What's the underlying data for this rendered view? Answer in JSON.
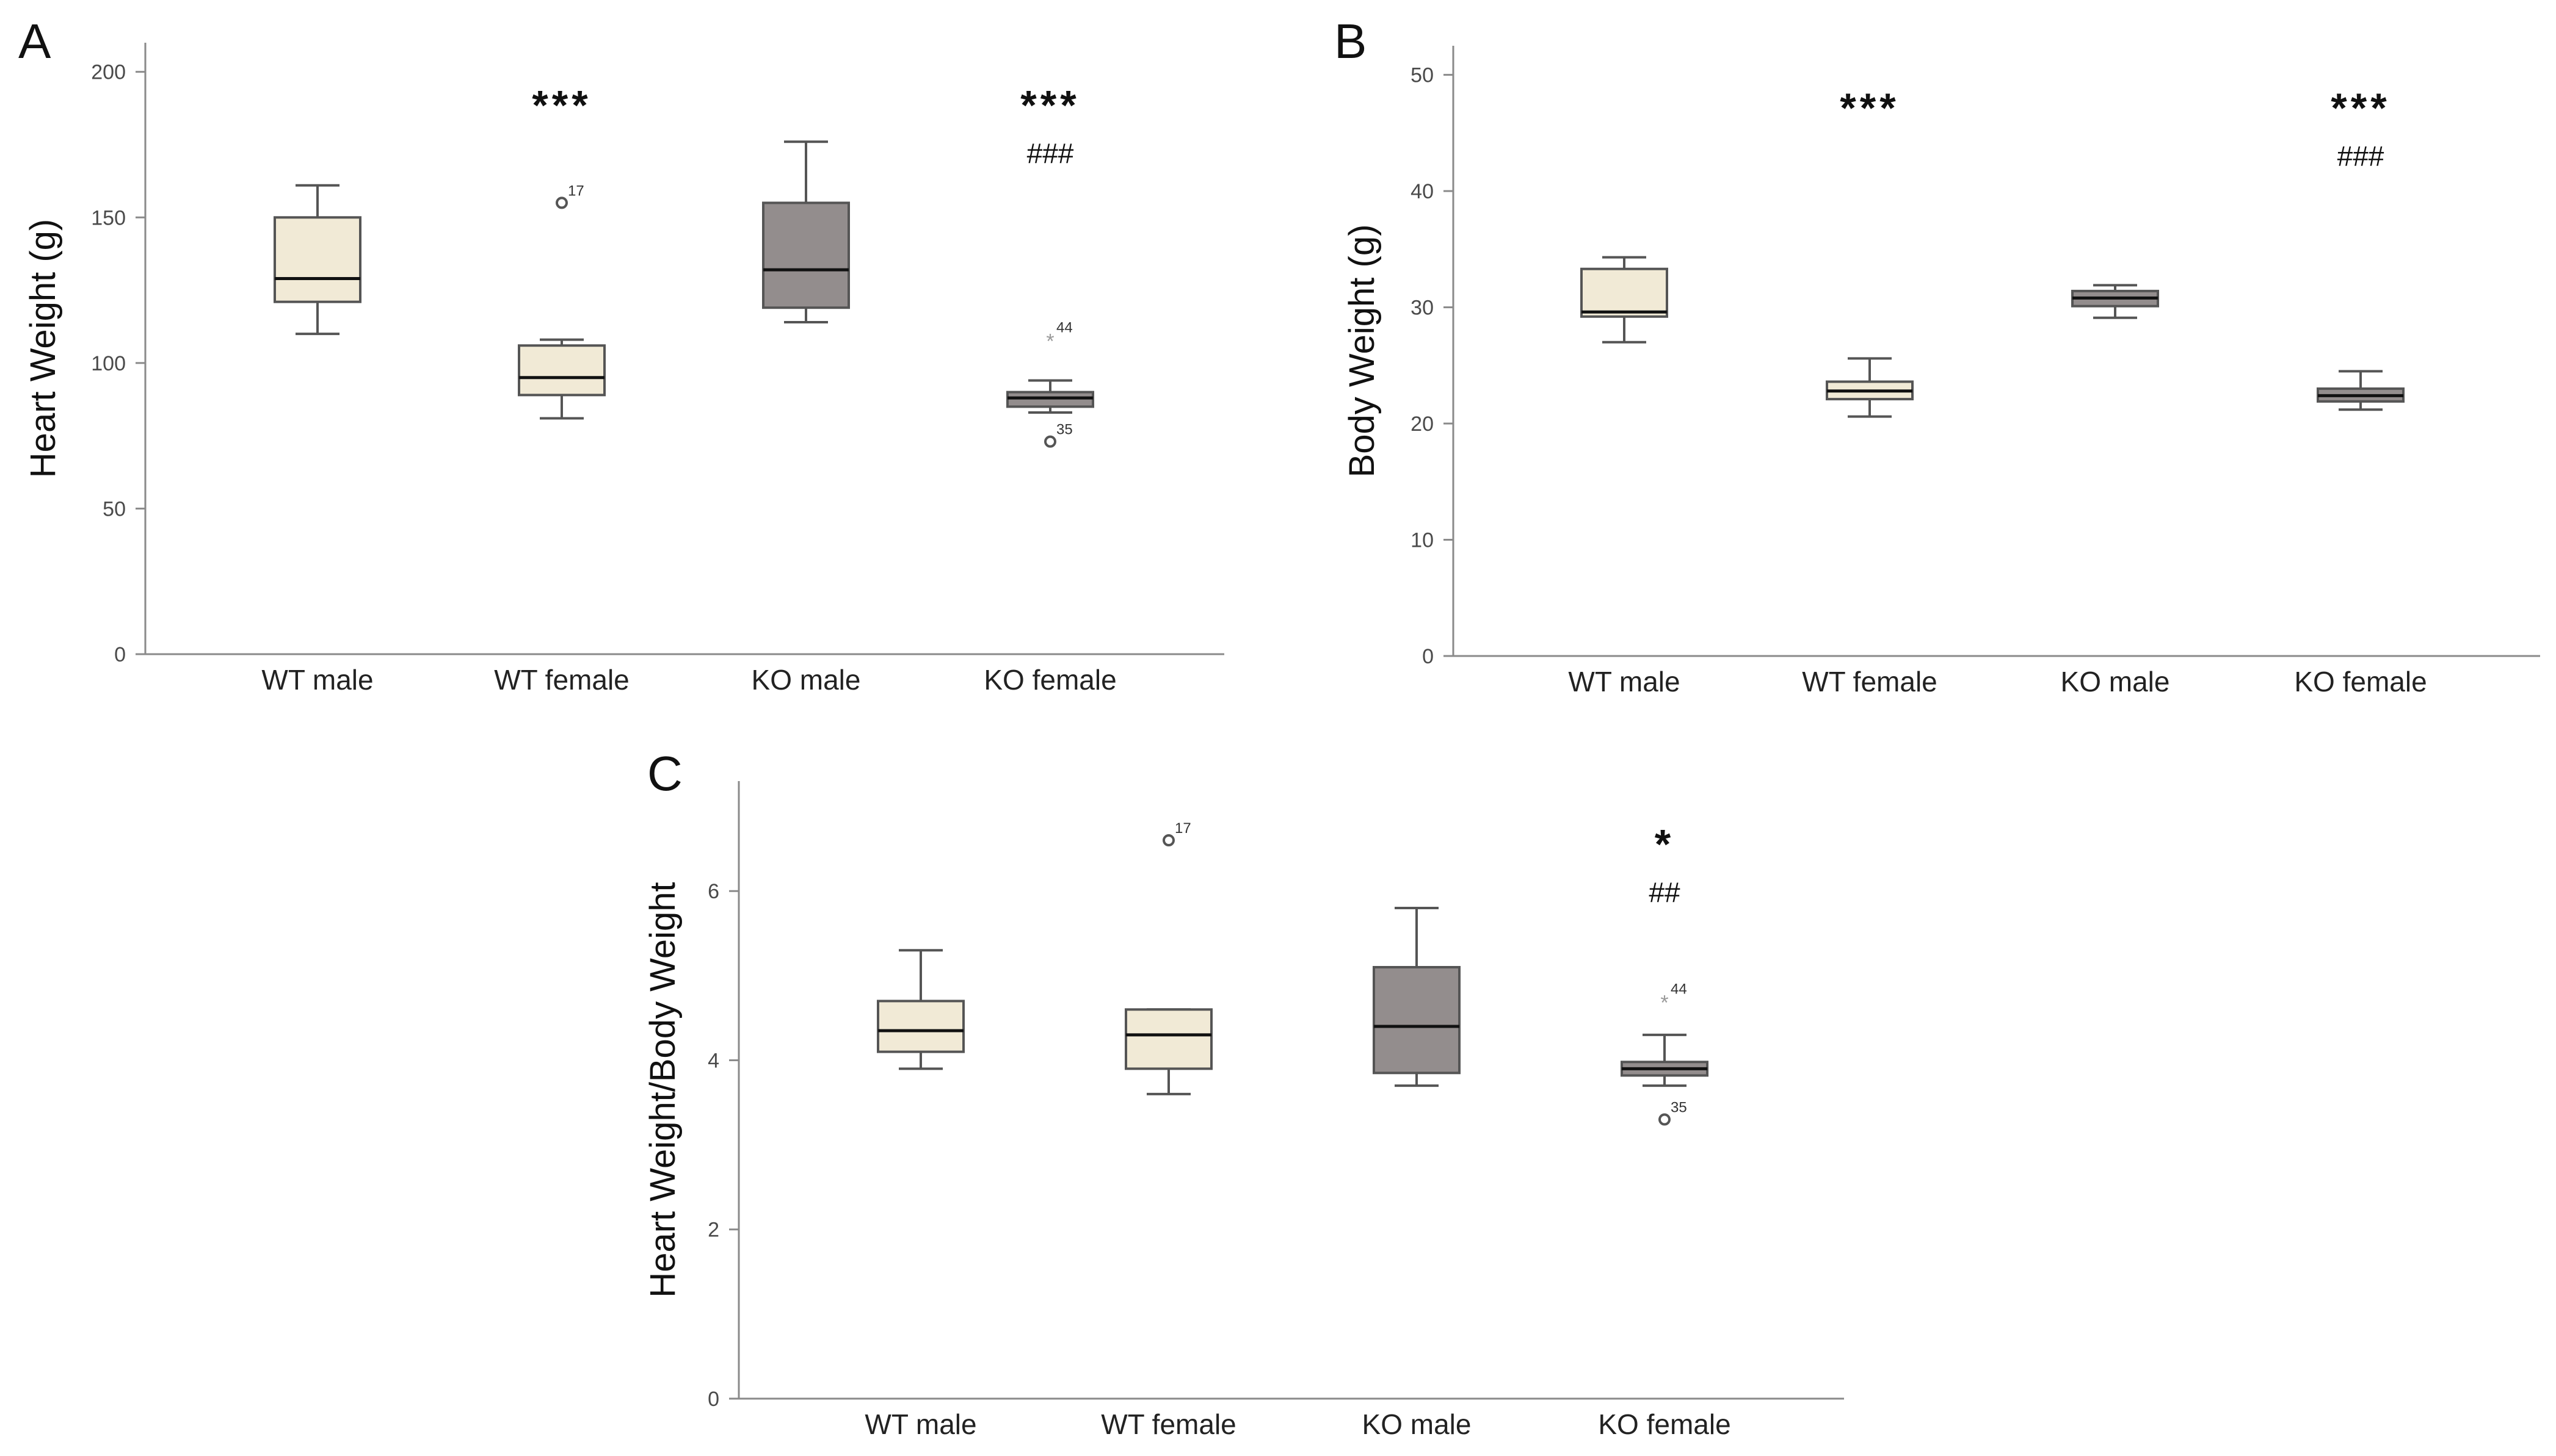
{
  "colors": {
    "wt_fill": "#f1ead6",
    "ko_fill": "#938d8d",
    "outlier_circle": "#555555",
    "extreme_star": "#9a9a9a"
  },
  "chart_data": [
    {
      "id": "A",
      "type": "box",
      "panel_label": "A",
      "ylabel": "Heart Weight (g)",
      "xlabel": "",
      "ylim": [
        0,
        210
      ],
      "yticks": [
        0,
        50,
        100,
        150,
        200
      ],
      "categories": [
        "WT male",
        "WT female",
        "KO male",
        "KO female"
      ],
      "boxes": [
        {
          "group": "WT",
          "whisker_low": 110,
          "q1": 121,
          "median": 129,
          "q3": 150,
          "whisker_high": 161,
          "outliers": [],
          "annotations": []
        },
        {
          "group": "WT",
          "whisker_low": 81,
          "q1": 89,
          "median": 95,
          "q3": 106,
          "whisker_high": 108,
          "outliers": [
            {
              "value": 155,
              "label": "17",
              "kind": "circle"
            }
          ],
          "annotations": [
            "***"
          ]
        },
        {
          "group": "KO",
          "whisker_low": 114,
          "q1": 119,
          "median": 132,
          "q3": 155,
          "whisker_high": 176,
          "outliers": [],
          "annotations": []
        },
        {
          "group": "KO",
          "whisker_low": 83,
          "q1": 85,
          "median": 88,
          "q3": 90,
          "whisker_high": 94,
          "outliers": [
            {
              "value": 108,
              "label": "44",
              "kind": "star"
            },
            {
              "value": 73,
              "label": "35",
              "kind": "circle"
            }
          ],
          "annotations": [
            "***",
            "###"
          ]
        }
      ]
    },
    {
      "id": "B",
      "type": "box",
      "panel_label": "B",
      "ylabel": "Body Weight (g)",
      "xlabel": "",
      "ylim": [
        0,
        52.5
      ],
      "yticks": [
        0,
        10,
        20,
        30,
        40,
        50
      ],
      "categories": [
        "WT male",
        "WT female",
        "KO male",
        "KO female"
      ],
      "boxes": [
        {
          "group": "WT",
          "whisker_low": 27,
          "q1": 29.2,
          "median": 29.6,
          "q3": 33.3,
          "whisker_high": 34.3,
          "outliers": [],
          "annotations": []
        },
        {
          "group": "WT",
          "whisker_low": 20.6,
          "q1": 22.1,
          "median": 22.8,
          "q3": 23.6,
          "whisker_high": 25.6,
          "outliers": [],
          "annotations": [
            "***"
          ]
        },
        {
          "group": "KO",
          "whisker_low": 29.1,
          "q1": 30.1,
          "median": 30.8,
          "q3": 31.4,
          "whisker_high": 31.9,
          "outliers": [],
          "annotations": []
        },
        {
          "group": "KO",
          "whisker_low": 21.2,
          "q1": 21.9,
          "median": 22.4,
          "q3": 23.0,
          "whisker_high": 24.5,
          "outliers": [],
          "annotations": [
            "***",
            "###"
          ]
        }
      ]
    },
    {
      "id": "C",
      "type": "box",
      "panel_label": "C",
      "ylabel": "Heart Weight/Body Weight",
      "xlabel": "",
      "ylim": [
        0,
        7.3
      ],
      "yticks": [
        0,
        2,
        4,
        6
      ],
      "categories": [
        "WT male",
        "WT female",
        "KO male",
        "KO female"
      ],
      "boxes": [
        {
          "group": "WT",
          "whisker_low": 3.9,
          "q1": 4.1,
          "median": 4.35,
          "q3": 4.7,
          "whisker_high": 5.3,
          "outliers": [],
          "annotations": []
        },
        {
          "group": "WT",
          "whisker_low": 3.6,
          "q1": 3.9,
          "median": 4.3,
          "q3": 4.6,
          "whisker_high": 4.6,
          "outliers": [
            {
              "value": 6.6,
              "label": "17",
              "kind": "circle"
            }
          ],
          "annotations": []
        },
        {
          "group": "KO",
          "whisker_low": 3.7,
          "q1": 3.85,
          "median": 4.4,
          "q3": 5.1,
          "whisker_high": 5.8,
          "outliers": [],
          "annotations": []
        },
        {
          "group": "KO",
          "whisker_low": 3.7,
          "q1": 3.82,
          "median": 3.9,
          "q3": 3.98,
          "whisker_high": 4.3,
          "outliers": [
            {
              "value": 4.7,
              "label": "44",
              "kind": "star"
            },
            {
              "value": 3.3,
              "label": "35",
              "kind": "circle"
            }
          ],
          "annotations": [
            "*",
            "##"
          ]
        }
      ]
    }
  ]
}
